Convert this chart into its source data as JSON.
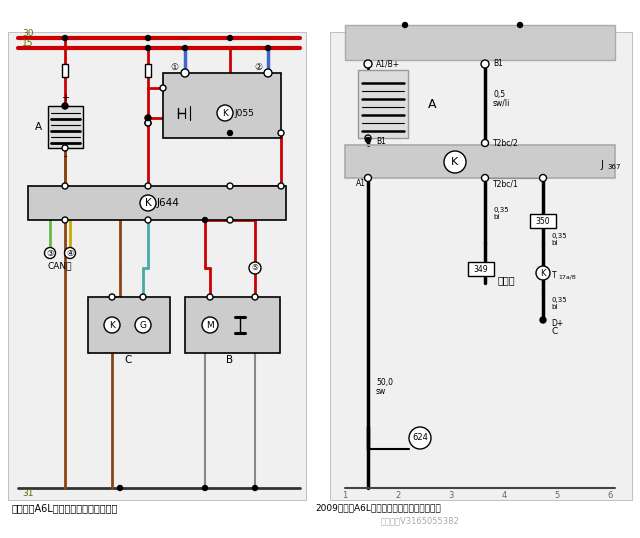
{
  "bg_color": "#ffffff",
  "title_left": "老款奥迪A6L的电能管理控制单元电路",
  "title_right": "2009款奥迪A6L使用蓄电池监控控制单元电路",
  "watermark": "微信号：V3165055382",
  "RED": "#cc0000",
  "BROWN": "#8B4513",
  "GREEN": "#66bb44",
  "YELLOW": "#ccaa00",
  "BLUE": "#4466cc",
  "TEAL": "#44aaaa"
}
